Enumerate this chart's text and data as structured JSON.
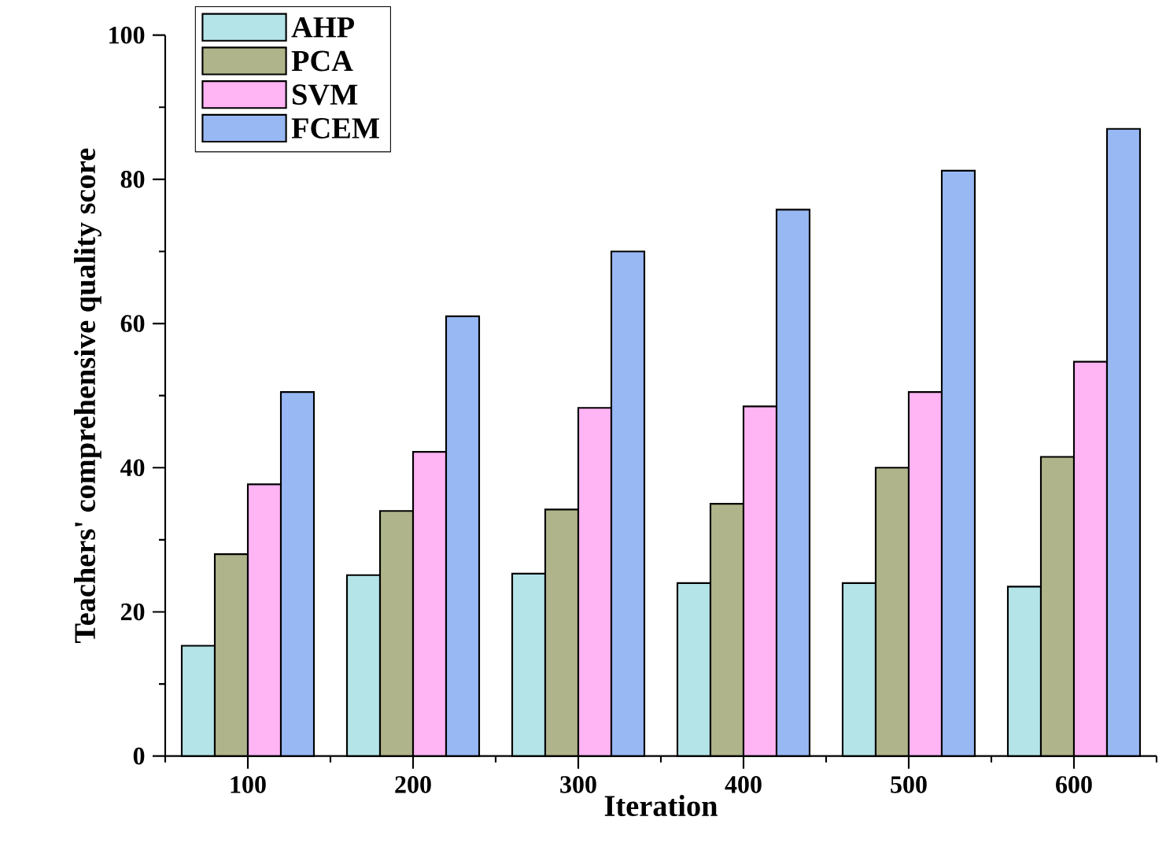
{
  "chart_data": {
    "type": "bar",
    "xlabel": "Iteration",
    "ylabel": "Teachers' comprehensive quality score",
    "categories": [
      "100",
      "200",
      "300",
      "400",
      "500",
      "600"
    ],
    "series": [
      {
        "name": "AHP",
        "color": "#b4e4e8",
        "values": [
          15.3,
          25.1,
          25.3,
          24.0,
          24.0,
          23.5
        ]
      },
      {
        "name": "PCA",
        "color": "#b0b48a",
        "values": [
          28.0,
          34.0,
          34.2,
          35.0,
          40.0,
          41.5
        ]
      },
      {
        "name": "SVM",
        "color": "#ffb4f4",
        "values": [
          37.7,
          42.2,
          48.3,
          48.5,
          50.5,
          54.7
        ]
      },
      {
        "name": "FCEM",
        "color": "#98b8f4",
        "values": [
          50.5,
          61.0,
          70.0,
          75.8,
          81.2,
          87.0
        ]
      }
    ],
    "ylim": [
      0,
      100
    ],
    "yticks": [
      0,
      20,
      40,
      60,
      80,
      100
    ],
    "grid": false,
    "legend": "top left"
  }
}
